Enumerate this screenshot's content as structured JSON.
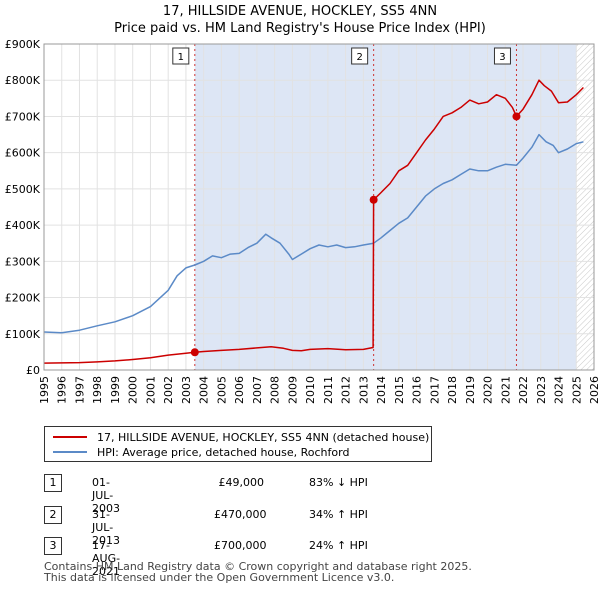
{
  "title_line1": "17, HILLSIDE AVENUE, HOCKLEY, SS5 4NN",
  "title_line2": "Price paid vs. HM Land Registry's House Price Index (HPI)",
  "colors": {
    "price_line": "#cc0000",
    "hpi_line": "#5b8ac7",
    "shade": "#dde6f5",
    "hatch": "#c8c8c8",
    "vline": "#cc3333"
  },
  "chart_data": {
    "type": "line",
    "xlim": [
      1995,
      2026
    ],
    "ylim": [
      0,
      900000
    ],
    "xticks": [
      "1995",
      "1996",
      "1997",
      "1998",
      "1999",
      "2000",
      "2001",
      "2002",
      "2003",
      "2004",
      "2005",
      "2006",
      "2007",
      "2008",
      "2009",
      "2010",
      "2011",
      "2012",
      "2013",
      "2014",
      "2015",
      "2016",
      "2017",
      "2018",
      "2019",
      "2020",
      "2021",
      "2022",
      "2023",
      "2024",
      "2025",
      "2026"
    ],
    "yticks": [
      {
        "value": 0,
        "label": "£0"
      },
      {
        "value": 100000,
        "label": "£100K"
      },
      {
        "value": 200000,
        "label": "£200K"
      },
      {
        "value": 300000,
        "label": "£300K"
      },
      {
        "value": 400000,
        "label": "£400K"
      },
      {
        "value": 500000,
        "label": "£500K"
      },
      {
        "value": 600000,
        "label": "£600K"
      },
      {
        "value": 700000,
        "label": "£700K"
      },
      {
        "value": 800000,
        "label": "£800K"
      },
      {
        "value": 900000,
        "label": "£900K"
      }
    ],
    "shaded_from": 2003.5,
    "forecast_from": 2025.0,
    "series": [
      {
        "name": "17, HILLSIDE AVENUE, HOCKLEY, SS5 4NN (detached house)",
        "color": "#cc0000",
        "points": [
          [
            1995.0,
            19000
          ],
          [
            1996.0,
            19500
          ],
          [
            1997.0,
            20500
          ],
          [
            1998.0,
            22500
          ],
          [
            1999.0,
            25000
          ],
          [
            2000.0,
            29000
          ],
          [
            2001.0,
            34000
          ],
          [
            2002.0,
            41000
          ],
          [
            2003.0,
            46000
          ],
          [
            2003.5,
            49000
          ],
          [
            2004.0,
            51000
          ],
          [
            2005.0,
            54000
          ],
          [
            2006.0,
            57000
          ],
          [
            2007.0,
            61000
          ],
          [
            2007.8,
            64000
          ],
          [
            2008.5,
            60000
          ],
          [
            2009.0,
            54000
          ],
          [
            2009.5,
            53000
          ],
          [
            2010.0,
            57000
          ],
          [
            2011.0,
            59000
          ],
          [
            2012.0,
            56000
          ],
          [
            2013.0,
            57000
          ],
          [
            2013.55,
            62000
          ],
          [
            2013.58,
            470000
          ],
          [
            2014.0,
            490000
          ],
          [
            2014.5,
            515000
          ],
          [
            2015.0,
            550000
          ],
          [
            2015.5,
            565000
          ],
          [
            2016.0,
            600000
          ],
          [
            2016.5,
            635000
          ],
          [
            2017.0,
            665000
          ],
          [
            2017.5,
            700000
          ],
          [
            2018.0,
            710000
          ],
          [
            2018.5,
            725000
          ],
          [
            2019.0,
            745000
          ],
          [
            2019.5,
            735000
          ],
          [
            2020.0,
            740000
          ],
          [
            2020.5,
            760000
          ],
          [
            2021.0,
            750000
          ],
          [
            2021.4,
            725000
          ],
          [
            2021.63,
            700000
          ],
          [
            2022.0,
            720000
          ],
          [
            2022.5,
            760000
          ],
          [
            2022.9,
            800000
          ],
          [
            2023.2,
            785000
          ],
          [
            2023.6,
            770000
          ],
          [
            2024.0,
            738000
          ],
          [
            2024.5,
            740000
          ],
          [
            2025.0,
            760000
          ],
          [
            2025.4,
            780000
          ]
        ]
      },
      {
        "name": "HPI: Average price, detached house, Rochford",
        "color": "#5b8ac7",
        "points": [
          [
            1995.0,
            105000
          ],
          [
            1996.0,
            103000
          ],
          [
            1997.0,
            110000
          ],
          [
            1998.0,
            122000
          ],
          [
            1999.0,
            133000
          ],
          [
            2000.0,
            150000
          ],
          [
            2001.0,
            175000
          ],
          [
            2002.0,
            220000
          ],
          [
            2002.5,
            260000
          ],
          [
            2003.0,
            282000
          ],
          [
            2003.5,
            290000
          ],
          [
            2004.0,
            300000
          ],
          [
            2004.5,
            315000
          ],
          [
            2005.0,
            310000
          ],
          [
            2005.5,
            320000
          ],
          [
            2006.0,
            322000
          ],
          [
            2006.5,
            338000
          ],
          [
            2007.0,
            350000
          ],
          [
            2007.5,
            375000
          ],
          [
            2007.8,
            365000
          ],
          [
            2008.3,
            350000
          ],
          [
            2008.8,
            320000
          ],
          [
            2009.0,
            305000
          ],
          [
            2009.5,
            320000
          ],
          [
            2010.0,
            335000
          ],
          [
            2010.5,
            345000
          ],
          [
            2011.0,
            340000
          ],
          [
            2011.5,
            345000
          ],
          [
            2012.0,
            338000
          ],
          [
            2012.5,
            340000
          ],
          [
            2013.0,
            345000
          ],
          [
            2013.58,
            350000
          ],
          [
            2014.0,
            365000
          ],
          [
            2014.5,
            385000
          ],
          [
            2015.0,
            405000
          ],
          [
            2015.5,
            420000
          ],
          [
            2016.0,
            450000
          ],
          [
            2016.5,
            480000
          ],
          [
            2017.0,
            500000
          ],
          [
            2017.5,
            515000
          ],
          [
            2018.0,
            525000
          ],
          [
            2018.5,
            540000
          ],
          [
            2019.0,
            555000
          ],
          [
            2019.5,
            550000
          ],
          [
            2020.0,
            550000
          ],
          [
            2020.5,
            560000
          ],
          [
            2021.0,
            568000
          ],
          [
            2021.63,
            565000
          ],
          [
            2022.0,
            585000
          ],
          [
            2022.5,
            615000
          ],
          [
            2022.9,
            650000
          ],
          [
            2023.3,
            630000
          ],
          [
            2023.7,
            620000
          ],
          [
            2024.0,
            600000
          ],
          [
            2024.5,
            610000
          ],
          [
            2025.0,
            625000
          ],
          [
            2025.4,
            630000
          ]
        ]
      }
    ],
    "sales": [
      {
        "label": "1",
        "x": 2003.5,
        "y": 49000
      },
      {
        "label": "2",
        "x": 2013.58,
        "y": 470000
      },
      {
        "label": "3",
        "x": 2021.63,
        "y": 700000
      }
    ]
  },
  "legend": {
    "price_label": "17, HILLSIDE AVENUE, HOCKLEY, SS5 4NN (detached house)",
    "hpi_label": "HPI: Average price, detached house, Rochford"
  },
  "transactions": [
    {
      "num": "1",
      "date": "01-JUL-2003",
      "price": "£49,000",
      "hpi": "83% ↓ HPI"
    },
    {
      "num": "2",
      "date": "31-JUL-2013",
      "price": "£470,000",
      "hpi": "34% ↑ HPI"
    },
    {
      "num": "3",
      "date": "17-AUG-2021",
      "price": "£700,000",
      "hpi": "24% ↑ HPI"
    }
  ],
  "footer": {
    "line1": "Contains HM Land Registry data © Crown copyright and database right 2025.",
    "line2": "This data is licensed under the Open Government Licence v3.0."
  }
}
